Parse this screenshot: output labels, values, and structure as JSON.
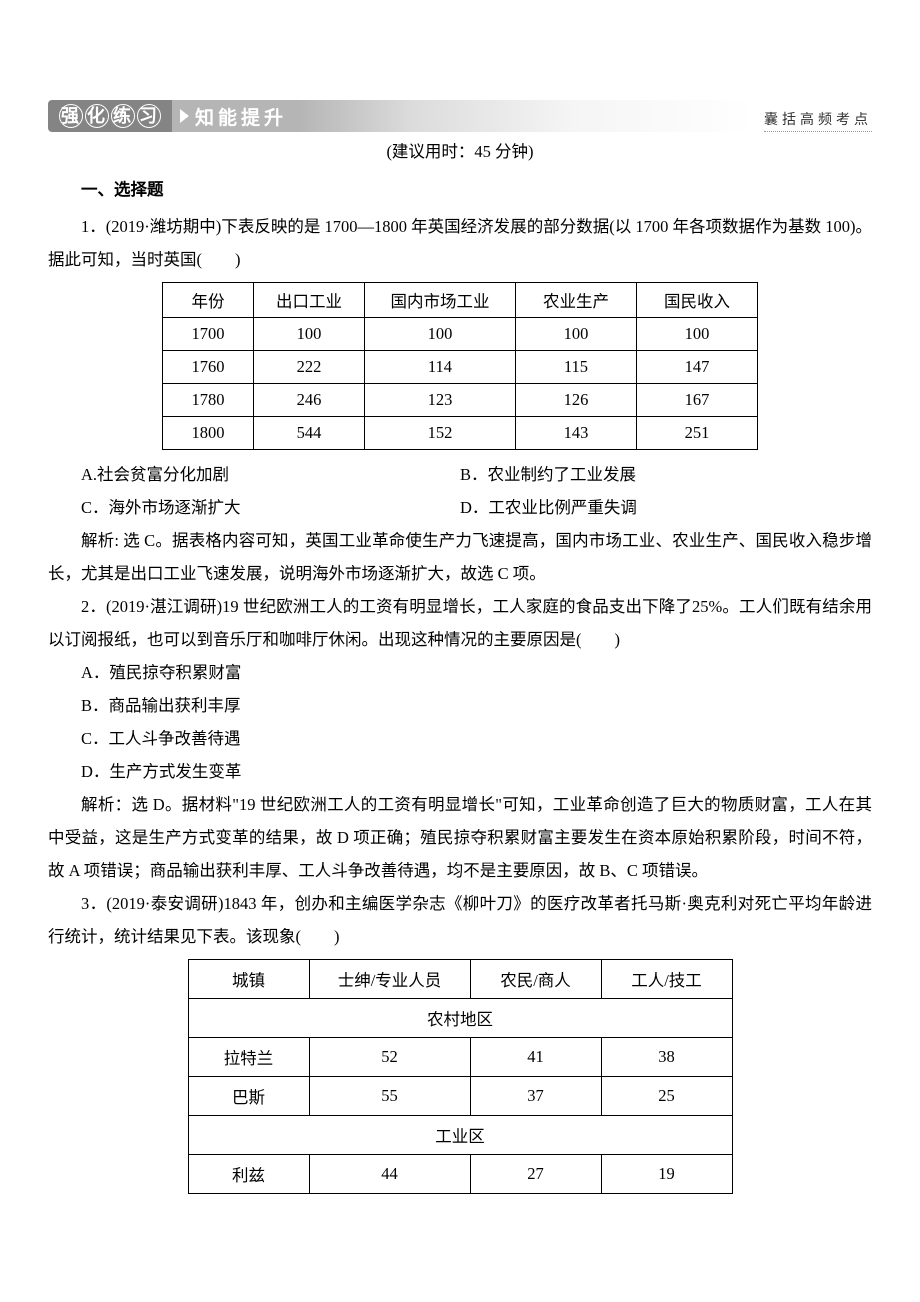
{
  "banner": {
    "left_chars": [
      "强",
      "化",
      "练",
      "习"
    ],
    "mid": "知能提升",
    "right": "囊括高频考点"
  },
  "time_note": "(建议用时：45 分钟)",
  "section1": "一、选择题",
  "q1": {
    "stem1": "1．(2019·潍坊期中)下表反映的是 1700—1800 年英国经济发展的部分数据(以 1700 年各项数据作为基数 100)。据此可知，当时英国(　　)",
    "table": {
      "headers": [
        "年份",
        "出口工业",
        "国内市场工业",
        "农业生产",
        "国民收入"
      ],
      "rows": [
        [
          "1700",
          "100",
          "100",
          "100",
          "100"
        ],
        [
          "1760",
          "222",
          "114",
          "115",
          "147"
        ],
        [
          "1780",
          "246",
          "123",
          "126",
          "167"
        ],
        [
          "1800",
          "544",
          "152",
          "143",
          "251"
        ]
      ]
    },
    "optA": "A.社会贫富分化加剧",
    "optB": "B．农业制约了工业发展",
    "optC": "C．海外市场逐渐扩大",
    "optD": "D．工农业比例严重失调",
    "ans": "解析: 选 C。据表格内容可知，英国工业革命使生产力飞速提高，国内市场工业、农业生产、国民收入稳步增长，尤其是出口工业飞速发展，说明海外市场逐渐扩大，故选 C 项。"
  },
  "q2": {
    "stem": "2．(2019·湛江调研)19 世纪欧洲工人的工资有明显增长，工人家庭的食品支出下降了25%。工人们既有结余用以订阅报纸，也可以到音乐厅和咖啡厅休闲。出现这种情况的主要原因是(　　)",
    "optA": "A．殖民掠夺积累财富",
    "optB": "B．商品输出获利丰厚",
    "optC": "C．工人斗争改善待遇",
    "optD": "D．生产方式发生变革",
    "ans": "解析：选 D。据材料\"19 世纪欧洲工人的工资有明显增长\"可知，工业革命创造了巨大的物质财富，工人在其中受益，这是生产方式变革的结果，故 D 项正确；殖民掠夺积累财富主要发生在资本原始积累阶段，时间不符，故 A 项错误；商品输出获利丰厚、工人斗争改善待遇，均不是主要原因，故 B、C 项错误。"
  },
  "q3": {
    "stem": "3．(2019·泰安调研)1843 年，创办和主编医学杂志《柳叶刀》的医疗改革者托马斯·奥克利对死亡平均年龄进行统计，统计结果见下表。该现象(　　)",
    "table": {
      "headers": [
        "城镇",
        "士绅/专业人员",
        "农民/商人",
        "工人/技工"
      ],
      "sub1": "农村地区",
      "rows1": [
        [
          "拉特兰",
          "52",
          "41",
          "38"
        ],
        [
          "巴斯",
          "55",
          "37",
          "25"
        ]
      ],
      "sub2": "工业区",
      "rows2": [
        [
          "利兹",
          "44",
          "27",
          "19"
        ]
      ]
    }
  }
}
